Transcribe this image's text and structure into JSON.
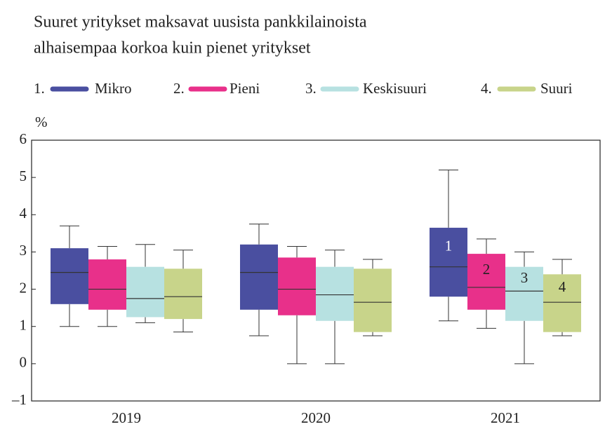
{
  "chart_data": {
    "type": "box",
    "title": [
      "Suuret yritykset maksavat uusista pankkilainoista",
      "alhaisempaa korkoa kuin pienet yritykset"
    ],
    "ylabel": "%",
    "categories": [
      "2019",
      "2020",
      "2021"
    ],
    "ylim": [
      -1,
      6
    ],
    "yticks": [
      {
        "value": -1,
        "label": "–1"
      },
      0,
      1,
      2,
      3,
      4,
      5,
      6
    ],
    "grid": false,
    "series": [
      {
        "name": "Mikro",
        "prefix": "1.",
        "color": "#4a4fa0",
        "values": [
          {
            "whislo": 1.0,
            "q1": 1.6,
            "med": 2.45,
            "q3": 3.1,
            "whishi": 3.7
          },
          {
            "whislo": 0.75,
            "q1": 1.45,
            "med": 2.45,
            "q3": 3.2,
            "whishi": 3.75
          },
          {
            "whislo": 1.15,
            "q1": 1.8,
            "med": 2.6,
            "q3": 3.65,
            "whishi": 5.2
          }
        ]
      },
      {
        "name": "Pieni",
        "prefix": "2.",
        "color": "#e8308a",
        "values": [
          {
            "whislo": 1.0,
            "q1": 1.45,
            "med": 2.0,
            "q3": 2.8,
            "whishi": 3.15
          },
          {
            "whislo": 0,
            "q1": 1.3,
            "med": 2.0,
            "q3": 2.85,
            "whishi": 3.15
          },
          {
            "whislo": 0.95,
            "q1": 1.45,
            "med": 2.05,
            "q3": 2.95,
            "whishi": 3.35
          }
        ]
      },
      {
        "name": "Keskisuuri",
        "prefix": "3.",
        "color": "#b7e1e1",
        "values": [
          {
            "whislo": 1.1,
            "q1": 1.25,
            "med": 1.75,
            "q3": 2.6,
            "whishi": 3.2
          },
          {
            "whislo": 0,
            "q1": 1.15,
            "med": 1.85,
            "q3": 2.6,
            "whishi": 3.05
          },
          {
            "whislo": 0,
            "q1": 1.15,
            "med": 1.95,
            "q3": 2.6,
            "whishi": 3.0
          }
        ]
      },
      {
        "name": "Suuri",
        "prefix": "4.",
        "color": "#c8d48a",
        "values": [
          {
            "whislo": 0.85,
            "q1": 1.2,
            "med": 1.8,
            "q3": 2.55,
            "whishi": 3.05
          },
          {
            "whislo": 0.75,
            "q1": 0.85,
            "med": 1.65,
            "q3": 2.55,
            "whishi": 2.8
          },
          {
            "whislo": 0.75,
            "q1": 0.85,
            "med": 1.65,
            "q3": 2.4,
            "whishi": 2.8
          }
        ]
      }
    ],
    "annotations": [
      {
        "text": "1",
        "series": 0,
        "category": 2
      },
      {
        "text": "2",
        "series": 1,
        "category": 2
      },
      {
        "text": "3",
        "series": 2,
        "category": 2
      },
      {
        "text": "4",
        "series": 3,
        "category": 2
      }
    ]
  }
}
